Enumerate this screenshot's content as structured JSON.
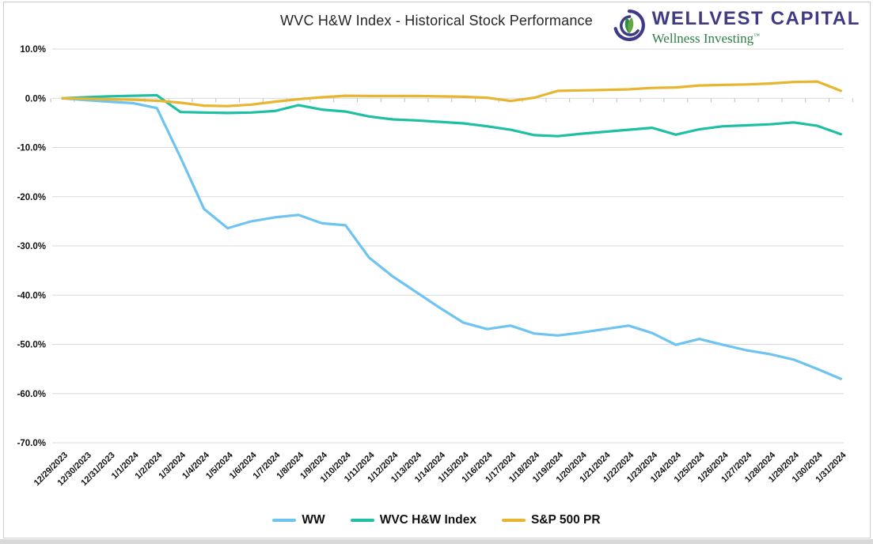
{
  "header": {
    "logo": {
      "name": "WELLVEST CAPITAL",
      "tagline": "Wellness Investing",
      "trademark": "™",
      "brand_color": "#3E3A86",
      "tagline_color": "#2E7D46"
    }
  },
  "chart_data": {
    "type": "line",
    "title": "WVC H&W Index - Historical Stock Performance",
    "xlabel": "",
    "ylabel": "",
    "ylim": [
      -70,
      10
    ],
    "ytick_step": 10,
    "ytick_labels": [
      "10.0%",
      "0.0%",
      "-10.0%",
      "-20.0%",
      "-30.0%",
      "-40.0%",
      "-50.0%",
      "-60.0%",
      "-70.0%"
    ],
    "grid": true,
    "legend_position": "bottom",
    "x": [
      "12/29/2023",
      "12/30/2023",
      "12/31/2023",
      "1/1/2024",
      "1/2/2024",
      "1/3/2024",
      "1/4/2024",
      "1/5/2024",
      "1/6/2024",
      "1/7/2024",
      "1/8/2024",
      "1/9/2024",
      "1/10/2024",
      "1/11/2024",
      "1/12/2024",
      "1/13/2024",
      "1/14/2024",
      "1/15/2024",
      "1/16/2024",
      "1/17/2024",
      "1/18/2024",
      "1/19/2024",
      "1/20/2024",
      "1/21/2024",
      "1/22/2024",
      "1/23/2024",
      "1/24/2024",
      "1/25/2024",
      "1/26/2024",
      "1/27/2024",
      "1/28/2024",
      "1/29/2024",
      "1/30/2024",
      "1/31/2024"
    ],
    "series": [
      {
        "name": "WW",
        "color": "#6EC4F0",
        "values": [
          0.0,
          -0.4,
          -0.7,
          -1.0,
          -2.0,
          -12.0,
          -22.5,
          -26.4,
          -25.0,
          -24.2,
          -23.7,
          -25.4,
          -25.8,
          -32.4,
          -36.2,
          -39.4,
          -42.6,
          -45.6,
          -46.9,
          -46.2,
          -47.8,
          -48.2,
          -47.6,
          -46.9,
          -46.2,
          -47.7,
          -50.1,
          -48.9,
          -50.1,
          -51.2,
          -52.0,
          -53.1,
          -55.0,
          -57.0
        ]
      },
      {
        "name": "WVC H&W Index",
        "color": "#1FBFA4",
        "values": [
          0.0,
          0.2,
          0.4,
          0.5,
          0.6,
          -2.8,
          -2.9,
          -3.0,
          -2.9,
          -2.6,
          -1.4,
          -2.3,
          -2.7,
          -3.7,
          -4.3,
          -4.5,
          -4.8,
          -5.1,
          -5.7,
          -6.4,
          -7.5,
          -7.7,
          -7.2,
          -6.8,
          -6.4,
          -6.0,
          -7.4,
          -6.3,
          -5.7,
          -5.5,
          -5.3,
          -4.9,
          -5.6,
          -7.3
        ]
      },
      {
        "name": "S&P 500 PR",
        "color": "#E8B530",
        "values": [
          0.0,
          -0.1,
          -0.2,
          -0.3,
          -0.5,
          -0.9,
          -1.5,
          -1.6,
          -1.3,
          -0.7,
          -0.2,
          0.2,
          0.5,
          0.45,
          0.45,
          0.45,
          0.4,
          0.3,
          0.1,
          -0.55,
          0.1,
          1.5,
          1.6,
          1.7,
          1.8,
          2.1,
          2.2,
          2.6,
          2.7,
          2.8,
          3.0,
          3.3,
          3.4,
          1.5
        ]
      }
    ]
  }
}
